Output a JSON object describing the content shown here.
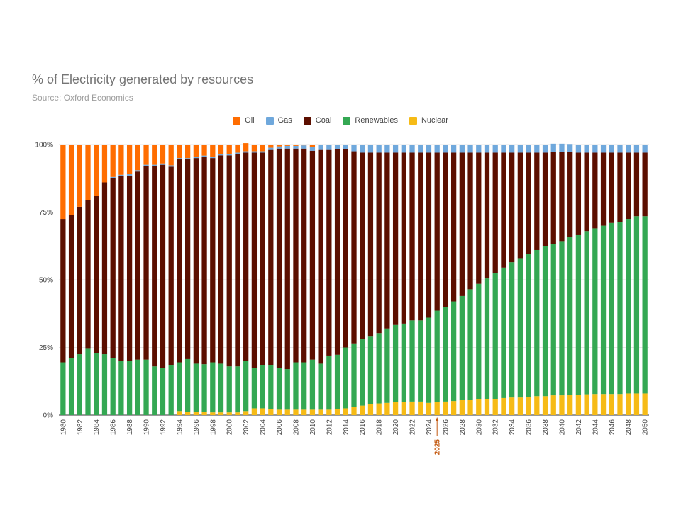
{
  "chart_data": {
    "type": "bar",
    "stacked": true,
    "percent": true,
    "title": "% of Electricity generated by resources",
    "subtitle": "Source: Oxford Economics",
    "xlabel": "",
    "ylabel": "",
    "ylim": [
      0,
      100
    ],
    "yticks": [
      "0%",
      "25%",
      "50%",
      "75%",
      "100%"
    ],
    "ytick_values": [
      0,
      25,
      50,
      75,
      100
    ],
    "grid": true,
    "legend_position": "top",
    "x": [
      1980,
      1981,
      1982,
      1983,
      1984,
      1985,
      1986,
      1987,
      1988,
      1989,
      1990,
      1991,
      1992,
      1993,
      1994,
      1995,
      1996,
      1997,
      1998,
      1999,
      2000,
      2001,
      2002,
      2003,
      2004,
      2005,
      2006,
      2007,
      2008,
      2009,
      2010,
      2011,
      2012,
      2013,
      2014,
      2015,
      2016,
      2017,
      2018,
      2019,
      2020,
      2021,
      2022,
      2023,
      2024,
      2025,
      2026,
      2027,
      2028,
      2029,
      2030,
      2031,
      2032,
      2033,
      2034,
      2035,
      2036,
      2037,
      2038,
      2039,
      2040,
      2041,
      2042,
      2043,
      2044,
      2045,
      2046,
      2047,
      2048,
      2049,
      2050
    ],
    "xtick_labels": [
      "1980",
      "1982",
      "1984",
      "1986",
      "1988",
      "1990",
      "1992",
      "1994",
      "1996",
      "1998",
      "2000",
      "2002",
      "2004",
      "2006",
      "2008",
      "2010",
      "2012",
      "2014",
      "2016",
      "2018",
      "2020",
      "2022",
      "2024",
      "2026",
      "2028",
      "2030",
      "2032",
      "2034",
      "2036",
      "2038",
      "2040",
      "2042",
      "2044",
      "2046",
      "2048",
      "2050"
    ],
    "annotation": {
      "label": "2025",
      "x": 2025,
      "color": "#c45a11"
    },
    "series": [
      {
        "name": "Nuclear",
        "color": "#f6bb16",
        "values": [
          0,
          0,
          0,
          0,
          0,
          0,
          0,
          0,
          0,
          0,
          0,
          0,
          0,
          0,
          1.5,
          1.2,
          1.2,
          1.2,
          1.0,
          1.0,
          1.0,
          1.0,
          1.5,
          2.5,
          2.5,
          2.3,
          2.0,
          2.0,
          2.0,
          2.0,
          2.0,
          2.0,
          2.0,
          2.3,
          2.5,
          3.0,
          3.5,
          4.0,
          4.3,
          4.5,
          4.8,
          4.8,
          5.0,
          5.0,
          4.5,
          4.8,
          5.0,
          5.2,
          5.5,
          5.5,
          5.8,
          6.0,
          6.0,
          6.3,
          6.5,
          6.5,
          6.8,
          7.0,
          7.0,
          7.3,
          7.3,
          7.5,
          7.5,
          7.7,
          7.8,
          7.8,
          7.8,
          7.8,
          8.0,
          8.0,
          8.0
        ]
      },
      {
        "name": "Renewables",
        "color": "#34a853",
        "values": [
          19.5,
          21.0,
          22.5,
          24.5,
          23.0,
          22.5,
          21.0,
          20.0,
          20.0,
          20.5,
          20.5,
          18.0,
          17.5,
          18.5,
          18.0,
          19.5,
          17.8,
          17.6,
          18.5,
          18.0,
          17.0,
          17.0,
          18.5,
          15.0,
          16.0,
          16.2,
          15.5,
          15.0,
          17.5,
          17.5,
          18.5,
          17.0,
          20.0,
          20.0,
          22.5,
          23.5,
          24.5,
          25.0,
          26.0,
          27.5,
          28.5,
          29.0,
          30.0,
          30.0,
          31.5,
          33.8,
          35.0,
          36.8,
          38.5,
          41.0,
          42.7,
          44.5,
          46.5,
          48.2,
          50.0,
          51.5,
          52.7,
          54.0,
          55.5,
          56.0,
          57.0,
          58.2,
          59.0,
          60.3,
          61.2,
          62.2,
          63.2,
          63.5,
          64.5,
          65.5,
          65.5
        ]
      },
      {
        "name": "Coal",
        "color": "#5c0f00",
        "values": [
          53.0,
          53.0,
          54.5,
          55.0,
          58.0,
          63.5,
          66.7,
          68.3,
          68.5,
          69.5,
          71.5,
          74.0,
          75.0,
          73.3,
          75.0,
          73.8,
          76.0,
          76.6,
          75.5,
          77.0,
          78.0,
          78.5,
          77.0,
          79.5,
          78.5,
          79.5,
          81.0,
          81.5,
          79.0,
          79.0,
          77.2,
          79.0,
          76.0,
          76.0,
          73.3,
          71.0,
          69.0,
          68.0,
          66.7,
          65.0,
          63.7,
          63.2,
          62.0,
          62.0,
          61.0,
          58.4,
          57.0,
          55.0,
          53.0,
          50.5,
          48.5,
          46.5,
          44.5,
          42.5,
          40.5,
          39.0,
          37.5,
          36.0,
          34.5,
          34.0,
          33.0,
          31.5,
          30.5,
          29.0,
          28.0,
          27.0,
          26.0,
          25.7,
          24.5,
          23.5,
          23.5
        ]
      },
      {
        "name": "Gas",
        "color": "#6fa8dc",
        "values": [
          0,
          0,
          0,
          0,
          0,
          0,
          0.3,
          0.5,
          0.5,
          0.5,
          0.5,
          0.5,
          0.5,
          0.5,
          0.5,
          0.5,
          0.5,
          0.5,
          0.5,
          0.5,
          0.5,
          0.5,
          0.5,
          0.5,
          0.5,
          0.8,
          0.8,
          1.0,
          1.0,
          1.2,
          1.5,
          2.0,
          2.0,
          1.7,
          1.7,
          2.5,
          3.0,
          3.0,
          3.0,
          3.0,
          3.0,
          3.0,
          3.0,
          3.0,
          3.0,
          3.0,
          3.0,
          3.0,
          3.0,
          3.0,
          3.0,
          3.0,
          3.0,
          3.0,
          3.0,
          3.0,
          3.0,
          3.0,
          3.0,
          3.0,
          3.0,
          3.0,
          3.0,
          3.0,
          3.0,
          3.0,
          3.0,
          3.0,
          3.0,
          3.0,
          3.0
        ]
      },
      {
        "name": "Oil",
        "color": "#ff6d01",
        "values": [
          27.5,
          26.0,
          23.0,
          20.5,
          19.0,
          14.0,
          12.0,
          11.2,
          11.0,
          9.5,
          7.5,
          7.5,
          7.0,
          7.7,
          5.0,
          5.0,
          4.5,
          4.1,
          4.5,
          3.5,
          3.5,
          3.0,
          3.0,
          2.5,
          2.5,
          1.2,
          0.7,
          0.5,
          0.5,
          0.3,
          0.8,
          0,
          0,
          0,
          0,
          0,
          0,
          0,
          0,
          0,
          0,
          0,
          0,
          0,
          0,
          0,
          0,
          0,
          0,
          0,
          0,
          0,
          0,
          0,
          0,
          0,
          0,
          0,
          0,
          0,
          0,
          0,
          0,
          0,
          0,
          0,
          0,
          0,
          0,
          0,
          0
        ]
      }
    ]
  },
  "legend": {
    "order": [
      "Oil",
      "Gas",
      "Coal",
      "Renewables",
      "Nuclear"
    ],
    "items": [
      {
        "label": "Oil",
        "color": "#ff6d01"
      },
      {
        "label": "Gas",
        "color": "#6fa8dc"
      },
      {
        "label": "Coal",
        "color": "#5c0f00"
      },
      {
        "label": "Renewables",
        "color": "#34a853"
      },
      {
        "label": "Nuclear",
        "color": "#f6bb16"
      }
    ]
  }
}
